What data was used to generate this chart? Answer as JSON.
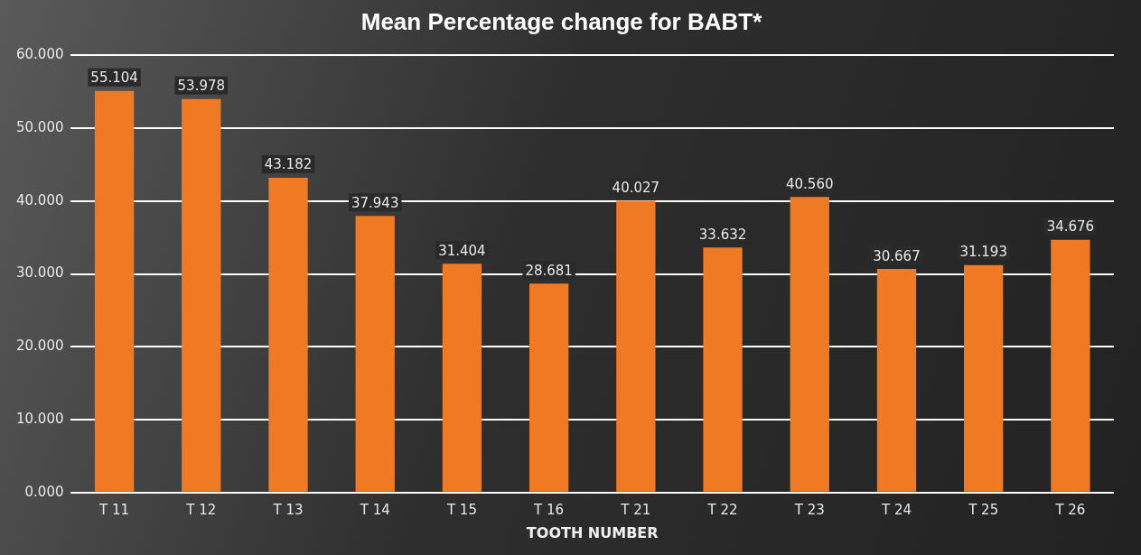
{
  "chart_data": {
    "type": "bar",
    "title": "Mean Percentage change for BABT*",
    "xlabel": "TOOTH NUMBER",
    "categories": [
      "T 11",
      "T 12",
      "T 13",
      "T 14",
      "T 15",
      "T 16",
      "T 21",
      "T 22",
      "T 23",
      "T 24",
      "T 25",
      "T 26"
    ],
    "values": [
      55.104,
      53.978,
      43.182,
      37.943,
      31.404,
      28.681,
      40.027,
      33.632,
      40.56,
      30.667,
      31.193,
      34.676
    ],
    "value_labels": [
      "55.104",
      "53.978",
      "43.182",
      "37.943",
      "31.404",
      "28.681",
      "40.027",
      "33.632",
      "40.560",
      "30.667",
      "31.193",
      "34.676"
    ],
    "color": "#f07a24",
    "ylim": [
      0,
      60
    ],
    "yticks": [
      {
        "value": 0,
        "label": "0.000"
      },
      {
        "value": 10,
        "label": "10.000"
      },
      {
        "value": 20,
        "label": "20.000"
      },
      {
        "value": 30,
        "label": "30.000"
      },
      {
        "value": 40,
        "label": "40.000"
      },
      {
        "value": 50,
        "label": "50.000"
      },
      {
        "value": 60,
        "label": "60.000"
      }
    ],
    "grid": "y"
  }
}
